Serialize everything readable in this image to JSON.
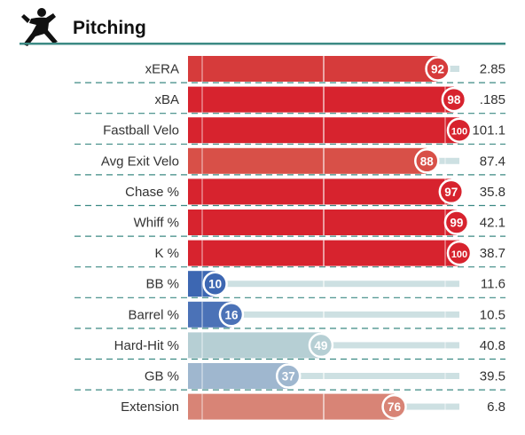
{
  "header": {
    "title": "Pitching",
    "icon": "pitcher-silhouette-icon"
  },
  "colors": {
    "header_rule": "#3c8a84",
    "row_divider": "#3c8a84",
    "track": "#cde0e2",
    "gridline": "#ffffff"
  },
  "chart_data": {
    "type": "bar",
    "title": "Pitching",
    "value_scale": "percentile",
    "xlim": [
      0,
      100
    ],
    "gridlines_at": [
      50
    ],
    "rows": [
      {
        "label": "xERA",
        "percentile": 92,
        "value": "2.85",
        "color": "#d63b3b"
      },
      {
        "label": "xBA",
        "percentile": 98,
        "value": ".185",
        "color": "#d7232e"
      },
      {
        "label": "Fastball Velo",
        "percentile": 100,
        "value": "101.1",
        "color": "#d7232e"
      },
      {
        "label": "Avg Exit Velo",
        "percentile": 88,
        "value": "87.4",
        "color": "#d85048"
      },
      {
        "label": "Chase %",
        "percentile": 97,
        "value": "35.8",
        "color": "#d7232e"
      },
      {
        "label": "Whiff %",
        "percentile": 99,
        "value": "42.1",
        "color": "#d7232e"
      },
      {
        "label": "K %",
        "percentile": 100,
        "value": "38.7",
        "color": "#d7232e"
      },
      {
        "label": "BB %",
        "percentile": 10,
        "value": "11.6",
        "color": "#3d67b2"
      },
      {
        "label": "Barrel %",
        "percentile": 16,
        "value": "10.5",
        "color": "#4b72b7"
      },
      {
        "label": "Hard-Hit %",
        "percentile": 49,
        "value": "40.8",
        "color": "#b6cfd4"
      },
      {
        "label": "GB %",
        "percentile": 37,
        "value": "39.5",
        "color": "#9fb7cf"
      },
      {
        "label": "Extension",
        "percentile": 76,
        "value": "6.8",
        "color": "#d88476"
      }
    ]
  }
}
